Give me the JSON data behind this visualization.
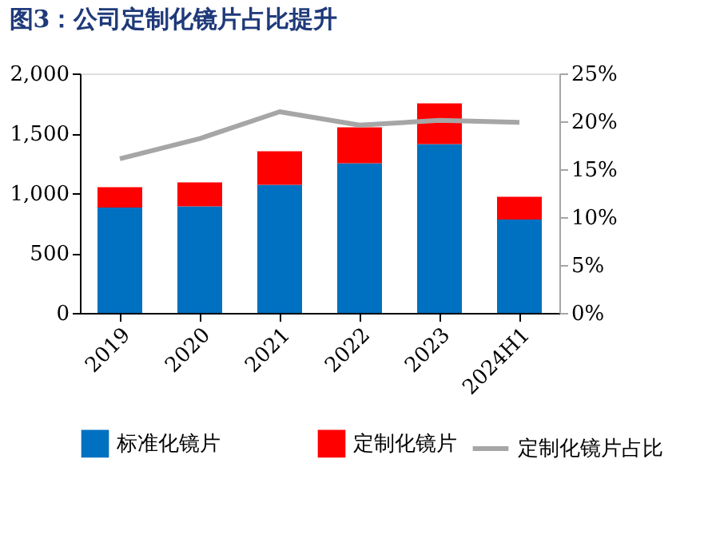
{
  "chart_data": {
    "type": "bar",
    "title": "图3：公司定制化镜片占比提升",
    "categories": [
      "2019",
      "2020",
      "2021",
      "2022",
      "2023",
      "2024H1"
    ],
    "stacked": true,
    "series": [
      {
        "name": "标准化镜片",
        "color": "#0070c0",
        "values": [
          880,
          890,
          1070,
          1250,
          1410,
          780
        ]
      },
      {
        "name": "定制化镜片",
        "color": "#ff0000",
        "values": [
          170,
          200,
          280,
          300,
          340,
          190
        ]
      },
      {
        "name": "定制化镜片占比",
        "color": "#a6a6a6",
        "type": "line",
        "axis": "y2",
        "values": [
          16.1,
          18.2,
          21.0,
          19.6,
          20.1,
          19.9
        ]
      }
    ],
    "ylim": [
      0,
      2000
    ],
    "yticks": [
      0,
      {
        "value": 500,
        "label": "500"
      },
      {
        "value": 1000,
        "label": "1,000"
      },
      {
        "value": 1500,
        "label": "1,500"
      },
      {
        "value": 2000,
        "label": "2,000"
      }
    ],
    "y2lim": [
      0,
      25
    ],
    "y2ticks": [
      {
        "value": 0,
        "label": "0%"
      },
      {
        "value": 5,
        "label": "5%"
      },
      {
        "value": 10,
        "label": "10%"
      },
      {
        "value": 15,
        "label": "15%"
      },
      {
        "value": 20,
        "label": "20%"
      },
      {
        "value": 25,
        "label": "25%"
      }
    ],
    "grid": false,
    "legend": "bottom",
    "marker": "none",
    "line_style": "solid"
  }
}
